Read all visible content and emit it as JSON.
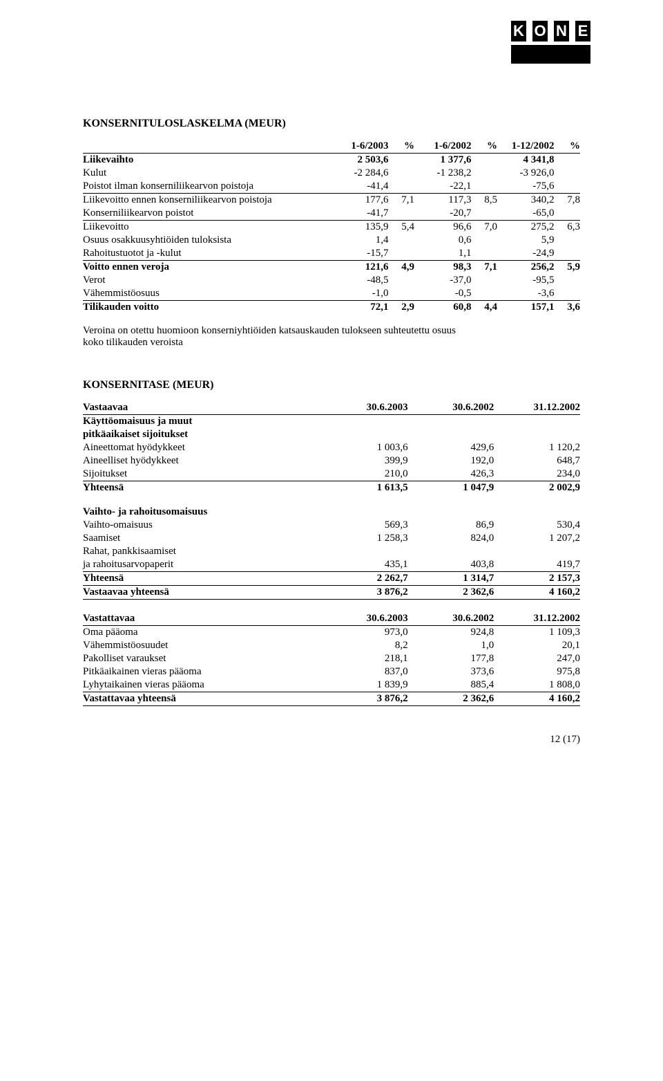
{
  "logo": {
    "text": "KONE",
    "bg": "#000000",
    "fg": "#ffffff"
  },
  "incomeStatement": {
    "title": "KONSERNITULOSLASKELMA (MEUR)",
    "headers": [
      "1-6/2003",
      "%",
      "1-6/2002",
      "%",
      "1-12/2002",
      "%"
    ],
    "rows": [
      {
        "label": "Liikevaihto",
        "v": [
          "2 503,6",
          "",
          "1 377,6",
          "",
          "4 341,8",
          ""
        ],
        "bold": true
      },
      {
        "label": "Kulut",
        "v": [
          "-2 284,6",
          "",
          "-1 238,2",
          "",
          "-3 926,0",
          ""
        ]
      },
      {
        "label": "Poistot ilman konserniliikearvon poistoja",
        "v": [
          "-41,4",
          "",
          "-22,1",
          "",
          "-75,6",
          ""
        ],
        "underline": true
      },
      {
        "label": "Liikevoitto ennen konserniliikearvon poistoja",
        "v": [
          "177,6",
          "7,1",
          "117,3",
          "8,5",
          "340,2",
          "7,8"
        ]
      },
      {
        "label": "Konserniliikearvon poistot",
        "v": [
          "-41,7",
          "",
          "-20,7",
          "",
          "-65,0",
          ""
        ],
        "underline": true
      },
      {
        "label": "Liikevoitto",
        "v": [
          "135,9",
          "5,4",
          "96,6",
          "7,0",
          "275,2",
          "6,3"
        ]
      },
      {
        "label": "Osuus osakkuusyhtiöiden tuloksista",
        "v": [
          "1,4",
          "",
          "0,6",
          "",
          "5,9",
          ""
        ]
      },
      {
        "label": "Rahoitustuotot ja -kulut",
        "v": [
          "-15,7",
          "",
          "1,1",
          "",
          "-24,9",
          ""
        ],
        "underline": true
      },
      {
        "label": "Voitto ennen veroja",
        "v": [
          "121,6",
          "4,9",
          "98,3",
          "7,1",
          "256,2",
          "5,9"
        ],
        "bold": true
      },
      {
        "label": "Verot",
        "v": [
          "-48,5",
          "",
          "-37,0",
          "",
          "-95,5",
          ""
        ]
      },
      {
        "label": "Vähemmistöosuus",
        "v": [
          "-1,0",
          "",
          "-0,5",
          "",
          "-3,6",
          ""
        ],
        "underline": true
      },
      {
        "label": "Tilikauden voitto",
        "v": [
          "72,1",
          "2,9",
          "60,8",
          "4,4",
          "157,1",
          "3,6"
        ],
        "bold": true
      }
    ]
  },
  "note": {
    "line1": "Veroina on otettu huomioon konserniyhtiöiden katsauskauden tulokseen suhteutettu osuus",
    "line2": "koko tilikauden veroista"
  },
  "balanceSheet": {
    "title": "KONSERNITASE (MEUR)",
    "assets": {
      "header": {
        "label": "Vastaavaa",
        "cols": [
          "30.6.2003",
          "30.6.2002",
          "31.12.2002"
        ]
      },
      "groups": [
        {
          "heading": [
            "Käyttöomaisuus ja muut",
            "pitkäaikaiset sijoitukset"
          ],
          "rows": [
            {
              "label": "Aineettomat hyödykkeet",
              "v": [
                "1 003,6",
                "429,6",
                "1 120,2"
              ]
            },
            {
              "label": "Aineelliset hyödykkeet",
              "v": [
                "399,9",
                "192,0",
                "648,7"
              ]
            },
            {
              "label": "Sijoitukset",
              "v": [
                "210,0",
                "426,3",
                "234,0"
              ],
              "underline": true
            }
          ],
          "total": {
            "label": "Yhteensä",
            "v": [
              "1 613,5",
              "1 047,9",
              "2 002,9"
            ],
            "bold": true
          }
        },
        {
          "heading": [
            "Vaihto- ja rahoitusomaisuus"
          ],
          "rows": [
            {
              "label": "Vaihto-omaisuus",
              "v": [
                "569,3",
                "86,9",
                "530,4"
              ]
            },
            {
              "label": "Saamiset",
              "v": [
                "1 258,3",
                "824,0",
                "1 207,2"
              ]
            }
          ],
          "extra": {
            "label1": "Rahat, pankkisaamiset",
            "label2": "ja rahoitusarvopaperit",
            "v": [
              "435,1",
              "403,8",
              "419,7"
            ],
            "underline": true
          },
          "total": {
            "label": "Yhteensä",
            "v": [
              "2 262,7",
              "1 314,7",
              "2 157,3"
            ],
            "bold": true,
            "underline": true
          }
        }
      ],
      "grandTotal": {
        "label": "Vastaavaa yhteensä",
        "v": [
          "3 876,2",
          "2 362,6",
          "4 160,2"
        ],
        "bold": true,
        "underline": true
      }
    },
    "liabilities": {
      "header": {
        "label": "Vastattavaa",
        "cols": [
          "30.6.2003",
          "30.6.2002",
          "31.12.2002"
        ]
      },
      "rows": [
        {
          "label": "Oma pääoma",
          "v": [
            "973,0",
            "924,8",
            "1 109,3"
          ]
        },
        {
          "label": "Vähemmistöosuudet",
          "v": [
            "8,2",
            "1,0",
            "20,1"
          ]
        },
        {
          "label": "Pakolliset varaukset",
          "v": [
            "218,1",
            "177,8",
            "247,0"
          ]
        },
        {
          "label": "Pitkäaikainen vieras pääoma",
          "v": [
            "837,0",
            "373,6",
            "975,8"
          ]
        },
        {
          "label": "Lyhytaikainen vieras pääoma",
          "v": [
            "1 839,9",
            "885,4",
            "1 808,0"
          ],
          "underline": true
        }
      ],
      "grandTotal": {
        "label": "Vastattavaa yhteensä",
        "v": [
          "3 876,2",
          "2 362,6",
          "4 160,2"
        ],
        "bold": true,
        "underline": true
      }
    }
  },
  "pageNumber": "12 (17)"
}
